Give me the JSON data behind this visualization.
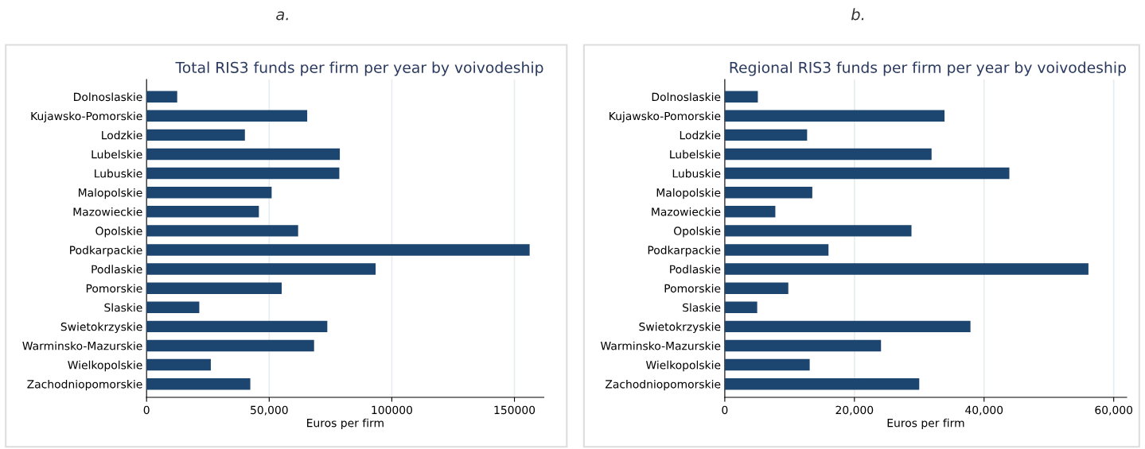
{
  "chart_data": [
    {
      "type": "bar",
      "orientation": "horizontal",
      "title": "Total RIS3 funds per firm per year by voivodeship",
      "xlabel": "Euros per firm",
      "annotations": [
        "a."
      ],
      "categories": [
        "Dolnoslaskie",
        "Kujawsko-Pomorskie",
        "Lodzkie",
        "Lubelskie",
        "Lubuskie",
        "Malopolskie",
        "Mazowieckie",
        "Opolskie",
        "Podkarpackie",
        "Podlaskie",
        "Pomorskie",
        "Slaskie",
        "Swietokrzyskie",
        "Warminsko-Mazurskie",
        "Wielkopolskie",
        "Zachodniopomorskie"
      ],
      "series": [
        {
          "color": "#1c4670",
          "values": [
            12500,
            65500,
            40100,
            78800,
            78600,
            51000,
            45800,
            61800,
            156200,
            93400,
            55100,
            21500,
            73700,
            68300,
            26200,
            42300
          ]
        }
      ],
      "xlim": [
        0,
        162000
      ],
      "xticks": [
        0,
        {
          "value": 50000,
          "label": "50,000"
        },
        100000,
        150000
      ],
      "grid": "x",
      "legend": false
    },
    {
      "type": "bar",
      "orientation": "horizontal",
      "title": "Regional RIS3 funds per firm per year by voivodeship",
      "xlabel": "Euros per firm",
      "annotations": [
        "b."
      ],
      "categories": [
        "Dolnoslaskie",
        "Kujawsko-Pomorskie",
        "Lodzkie",
        "Lubelskie",
        "Lubuskie",
        "Malopolskie",
        "Mazowieckie",
        "Opolskie",
        "Podkarpackie",
        "Podlaskie",
        "Pomorskie",
        "Slaskie",
        "Swietokrzyskie",
        "Warminsko-Mazurskie",
        "Wielkopolskie",
        "Zachodniopomorskie"
      ],
      "series": [
        {
          "color": "#1c4670",
          "values": [
            5100,
            33900,
            12700,
            31900,
            43900,
            13500,
            7800,
            28800,
            16000,
            56100,
            9800,
            5000,
            37900,
            24100,
            13100,
            30000
          ]
        }
      ],
      "xlim": [
        0,
        62000
      ],
      "xticks": [
        0,
        {
          "value": 20000,
          "label": "20,000"
        },
        {
          "value": 40000,
          "label": "40,000"
        },
        {
          "value": 60000,
          "label": "60,000"
        }
      ],
      "grid": "x",
      "legend": false
    }
  ]
}
